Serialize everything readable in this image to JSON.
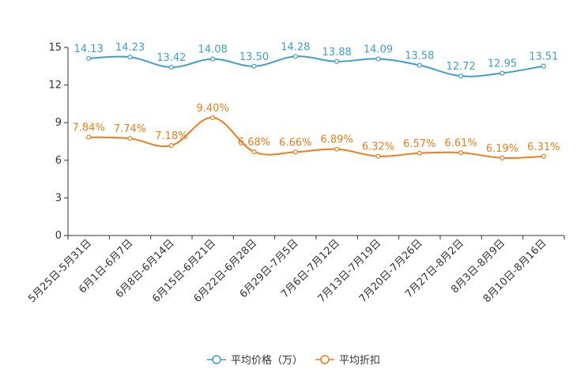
{
  "chart_data": {
    "type": "line",
    "title": "",
    "xlabel": "",
    "ylabel": "",
    "ylim": [
      0,
      15
    ],
    "yticks": [
      0,
      3,
      6,
      9,
      12,
      15
    ],
    "grid": false,
    "legend_position": "bottom-center",
    "categories": [
      "5月25日-5月31日",
      "6月1日-6月7日",
      "6月8日-6月14日",
      "6月15日-6月21日",
      "6月22日-6月28日",
      "6月29日-7月5日",
      "7月6日-7月12日",
      "7月13日-7月19日",
      "7月20日-7月26日",
      "7月27日-8月2日",
      "8月3日-8月9日",
      "8月10日-8月16日"
    ],
    "series": [
      {
        "name": "平均价格（万）",
        "color": "#3d9fd1",
        "values": [
          14.13,
          14.23,
          13.42,
          14.08,
          13.5,
          14.28,
          13.88,
          14.09,
          13.58,
          12.72,
          12.95,
          13.51
        ],
        "labels": [
          "14.13",
          "14.23",
          "13.42",
          "14.08",
          "13.50",
          "14.28",
          "13.88",
          "14.09",
          "13.58",
          "12.72",
          "12.95",
          "13.51"
        ]
      },
      {
        "name": "平均折扣",
        "color": "#f07c1a",
        "values": [
          7.84,
          7.74,
          7.18,
          9.4,
          6.68,
          6.66,
          6.89,
          6.32,
          6.57,
          6.61,
          6.19,
          6.31
        ],
        "labels": [
          "7.84%",
          "7.74%",
          "7.18%",
          "9.40%",
          "6.68%",
          "6.66%",
          "6.89%",
          "6.32%",
          "6.57%",
          "6.61%",
          "6.19%",
          "6.31%"
        ]
      }
    ]
  }
}
